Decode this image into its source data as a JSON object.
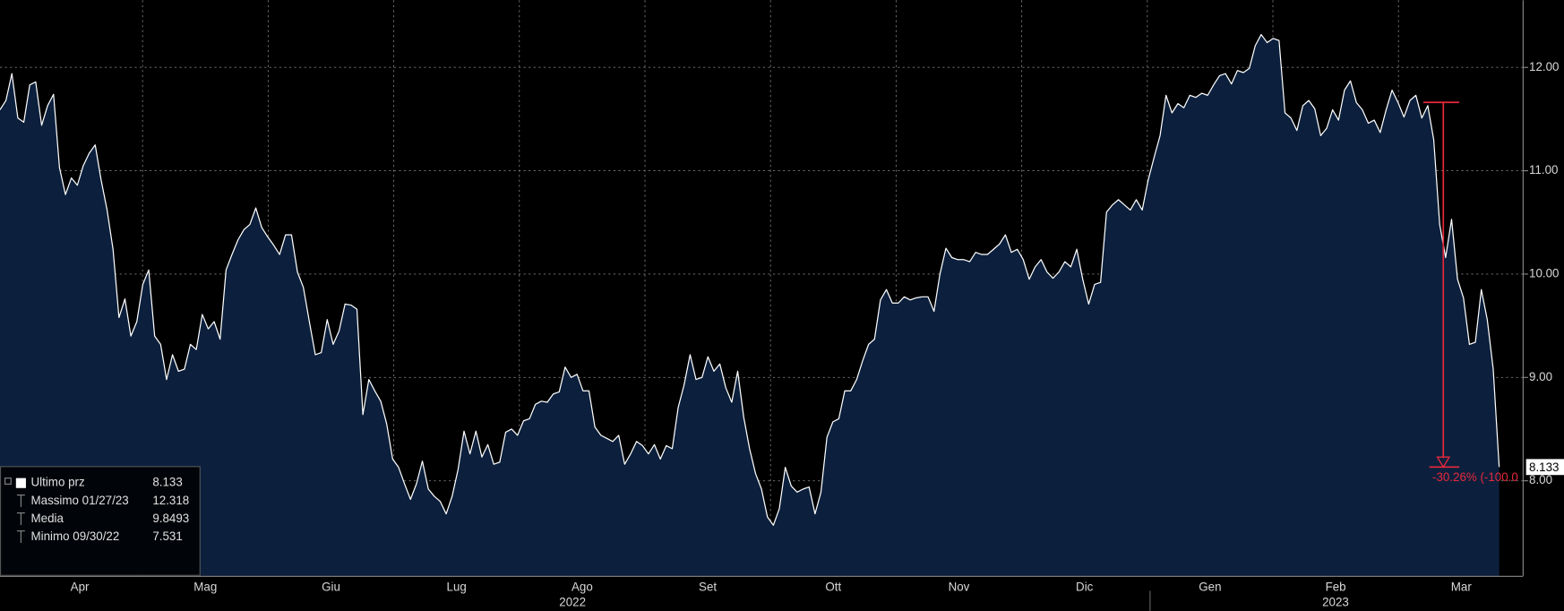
{
  "chart_data": {
    "type": "area",
    "series": [
      {
        "name": "Ultimo prz",
        "color": "#ffffff",
        "fill": "#0c203d",
        "values": [
          11.59,
          11.68,
          11.94,
          11.51,
          11.47,
          11.83,
          11.86,
          11.44,
          11.63,
          11.74,
          11.03,
          10.77,
          10.93,
          10.86,
          11.05,
          11.17,
          11.25,
          10.91,
          10.62,
          10.24,
          9.58,
          9.76,
          9.4,
          9.54,
          9.9,
          10.04,
          9.4,
          9.32,
          8.98,
          9.22,
          9.06,
          9.08,
          9.32,
          9.27,
          9.61,
          9.47,
          9.54,
          9.37,
          10.04,
          10.19,
          10.33,
          10.43,
          10.48,
          10.64,
          10.45,
          10.36,
          10.28,
          10.19,
          10.38,
          10.38,
          10.02,
          9.87,
          9.54,
          9.22,
          9.24,
          9.56,
          9.32,
          9.45,
          9.71,
          9.7,
          9.66,
          8.64,
          8.98,
          8.87,
          8.77,
          8.55,
          8.21,
          8.13,
          7.97,
          7.82,
          7.97,
          8.19,
          7.92,
          7.85,
          7.8,
          7.68,
          7.85,
          8.11,
          8.48,
          8.26,
          8.48,
          8.23,
          8.35,
          8.16,
          8.18,
          8.47,
          8.5,
          8.44,
          8.58,
          8.6,
          8.74,
          8.77,
          8.76,
          8.84,
          8.86,
          9.1,
          9.0,
          9.03,
          8.87,
          8.87,
          8.52,
          8.44,
          8.41,
          8.38,
          8.44,
          8.16,
          8.26,
          8.38,
          8.34,
          8.26,
          8.35,
          8.21,
          8.34,
          8.31,
          8.71,
          8.93,
          9.22,
          8.98,
          9.0,
          9.2,
          9.06,
          9.13,
          8.9,
          8.76,
          9.06,
          8.62,
          8.31,
          8.07,
          7.92,
          7.65,
          7.57,
          7.73,
          8.13,
          7.95,
          7.89,
          7.92,
          7.94,
          7.68,
          7.89,
          8.42,
          8.57,
          8.6,
          8.87,
          8.87,
          8.98,
          9.16,
          9.32,
          9.37,
          9.75,
          9.85,
          9.72,
          9.72,
          9.78,
          9.75,
          9.77,
          9.78,
          9.78,
          9.64,
          10.0,
          10.25,
          10.16,
          10.14,
          10.14,
          10.12,
          10.21,
          10.19,
          10.19,
          10.24,
          10.29,
          10.38,
          10.21,
          10.24,
          10.14,
          9.95,
          10.07,
          10.14,
          10.02,
          9.96,
          10.02,
          10.12,
          10.07,
          10.24,
          9.95,
          9.71,
          9.9,
          9.92,
          10.6,
          10.67,
          10.72,
          10.67,
          10.62,
          10.72,
          10.62,
          10.91,
          11.13,
          11.34,
          11.73,
          11.56,
          11.65,
          11.61,
          11.73,
          11.71,
          11.75,
          11.73,
          11.83,
          11.92,
          11.94,
          11.84,
          11.97,
          11.95,
          11.99,
          12.21,
          12.318,
          12.24,
          12.28,
          12.26,
          11.56,
          11.51,
          11.39,
          11.63,
          11.68,
          11.6,
          11.34,
          11.41,
          11.59,
          11.49,
          11.78,
          11.87,
          11.66,
          11.59,
          11.46,
          11.49,
          11.37,
          11.59,
          11.78,
          11.66,
          11.52,
          11.68,
          11.73,
          11.51,
          11.63,
          11.3,
          10.48,
          10.16,
          10.53,
          9.95,
          9.77,
          9.32,
          9.34,
          9.85,
          9.56,
          9.08,
          8.133
        ]
      }
    ],
    "x_labels": [
      "Apr",
      "Mag",
      "Giu",
      "Lug",
      "Ago",
      "Set",
      "Ott",
      "Nov",
      "Dic",
      "Gen",
      "Feb",
      "Mar"
    ],
    "years": [
      "2022",
      "2023"
    ],
    "ylim": [
      7.08,
      12.65
    ],
    "yticks": [
      {
        "value": 12,
        "label": "12.00"
      },
      {
        "value": 11,
        "label": "11.00"
      },
      {
        "value": 10,
        "label": "10.00"
      },
      {
        "value": 9,
        "label": "9.00"
      },
      {
        "value": 8,
        "label": "8.00"
      }
    ],
    "grid": true,
    "last_price": 8.133,
    "legend": {
      "position": "lower left",
      "entries": [
        {
          "label": "Ultimo prz",
          "value": 8.133
        },
        {
          "label": "Massimo 01/27/23",
          "value": 12.318
        },
        {
          "label": "Media",
          "value": 9.8493
        },
        {
          "label": "Minimo 09/30/22",
          "value": 7.531
        }
      ]
    },
    "annotation": {
      "text": "-30.26% (-100.0",
      "from": 11.662,
      "to": 8.133,
      "color": "#e8283c"
    }
  }
}
